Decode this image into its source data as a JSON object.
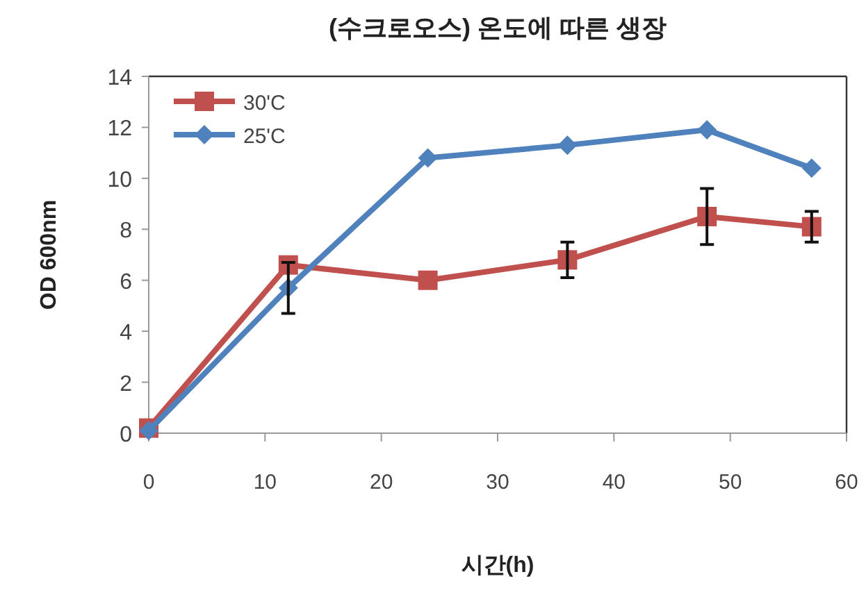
{
  "chart_data": {
    "type": "line",
    "title": "(수크로오스) 온도에 따른 생장",
    "xlabel": "시간(h)",
    "ylabel": "OD 600nm",
    "x": [
      0,
      12,
      24,
      36,
      48,
      57
    ],
    "series": [
      {
        "name": "30'C",
        "color": "#c0504d",
        "marker": "square",
        "values": [
          0.2,
          6.6,
          6.0,
          6.8,
          8.5,
          8.1
        ],
        "errors": [
          null,
          null,
          null,
          0.7,
          1.1,
          0.6
        ]
      },
      {
        "name": "25'C",
        "color": "#4f81bd",
        "marker": "diamond",
        "values": [
          0.1,
          5.7,
          10.8,
          11.3,
          11.9,
          10.4
        ],
        "errors": [
          null,
          1.0,
          null,
          null,
          null,
          null
        ]
      }
    ],
    "xlim": [
      0,
      60
    ],
    "xticks": [
      0,
      10,
      20,
      30,
      40,
      50,
      60
    ],
    "ylim": [
      0,
      14
    ],
    "yticks": [
      0,
      2,
      4,
      6,
      8,
      10,
      12,
      14
    ],
    "legend": "top left",
    "grid": false
  }
}
